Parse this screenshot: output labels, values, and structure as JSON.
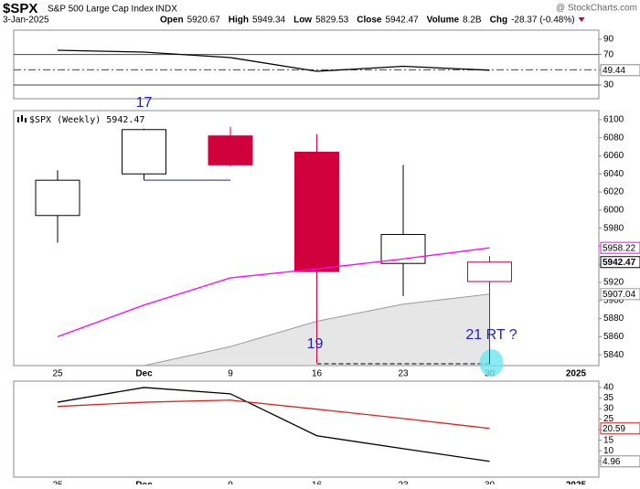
{
  "header": {
    "symbol": "$SPX",
    "name": "S&P 500 Large Cap Index",
    "exchange": "INDX",
    "source": "@ StockCharts.com",
    "date": "3-Jan-2025",
    "quote": [
      {
        "label": "Open",
        "value": "5920.67"
      },
      {
        "label": "High",
        "value": "5949.34"
      },
      {
        "label": "Low",
        "value": "5829.53"
      },
      {
        "label": "Close",
        "value": "5942.47"
      },
      {
        "label": "Volume",
        "value": "8.2B"
      },
      {
        "label": "Chg",
        "value": "-28.37 (-0.48%)"
      }
    ]
  },
  "chart_data": [
    {
      "type": "line",
      "ylim": [
        12,
        102
      ],
      "yticks": [
        90,
        70,
        50,
        30
      ],
      "hlines": [
        {
          "value": 70,
          "style": "solid"
        },
        {
          "value": 50,
          "style": "dash-dot"
        },
        {
          "value": 30,
          "style": "solid"
        }
      ],
      "series": [
        {
          "color": "#000000",
          "values": [
            75.6,
            73.2,
            66,
            48,
            54.6,
            49.44
          ]
        }
      ]
    },
    {
      "type": "candlestick",
      "title": "$SPX (Weekly) 5942.47",
      "x_labels": [
        "25",
        "Dec",
        "9",
        "16",
        "23",
        "30",
        "2025"
      ],
      "open": [
        5994,
        6040,
        6082,
        6064,
        5941,
        5921
      ],
      "high": [
        6044,
        6090,
        6092,
        6084,
        6050,
        5949
      ],
      "low": [
        5964,
        6033,
        6048,
        5831,
        5905,
        5830
      ],
      "close": [
        6033,
        6089,
        6050,
        5932,
        5973,
        5942.47
      ],
      "up_color": "#000000",
      "down_color": "#d0003c",
      "ylim": [
        5828,
        6110
      ],
      "yticks": [
        6100,
        6080,
        6060,
        6040,
        6020,
        6000,
        5980,
        5960,
        5940,
        5920,
        5900,
        5880,
        5860,
        5840
      ],
      "series": [
        {
          "kind": "line",
          "color": "#ff00ff",
          "values": [
            5860,
            5895,
            5925,
            5935,
            5946,
            5958.22
          ]
        },
        {
          "kind": "area",
          "color": "#999999",
          "values": [
            null,
            5828,
            5849,
            5877,
            5896,
            5907.04
          ]
        }
      ],
      "annotations": [
        {
          "text": "17"
        },
        {
          "text": "19"
        },
        {
          "text": "21 RT ?"
        }
      ]
    },
    {
      "type": "line",
      "x_labels": [
        "25",
        "Dec",
        "9",
        "16",
        "23",
        "30",
        "2025"
      ],
      "ylim": [
        -2.5,
        43
      ],
      "yticks": [
        40,
        35,
        30,
        25,
        20,
        15,
        10,
        5
      ],
      "series": [
        {
          "color": "#000000",
          "values": [
            33,
            40,
            37,
            17.1,
            11,
            4.96
          ]
        },
        {
          "color": "#e02020",
          "values": [
            31,
            33,
            34,
            29.7,
            25.3,
            20.59
          ]
        }
      ]
    }
  ]
}
